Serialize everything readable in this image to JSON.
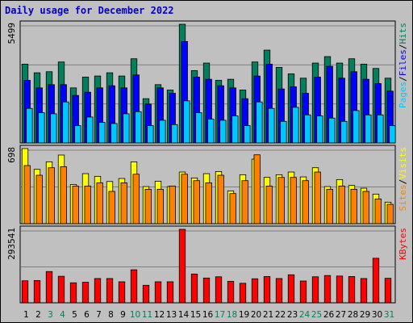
{
  "title": "Daily usage for December 2022",
  "colors": {
    "hits": "#00805c",
    "files": "#0000ff",
    "pages": "#00c8ff",
    "visits": "#ffff00",
    "sites": "#ff8000",
    "kbytes": "#ff0000",
    "title": "#0000c0",
    "weekend": "#00805c",
    "plot_bg": "#c0c0c0"
  },
  "panel_labels": {
    "top_max": "5499",
    "mid_max": "698",
    "bot_max": "293541",
    "top_legend": [
      "Pages",
      "/",
      "Files",
      "/",
      "Hits"
    ],
    "mid_legend": [
      "Sites",
      "/",
      "Visits"
    ],
    "bot_legend": [
      "KBytes"
    ]
  },
  "chart_data": {
    "type": "bar",
    "title": "Daily usage for December 2022",
    "categories": [
      "1",
      "2",
      "3",
      "4",
      "5",
      "6",
      "7",
      "8",
      "9",
      "10",
      "11",
      "12",
      "13",
      "14",
      "15",
      "16",
      "17",
      "18",
      "19",
      "20",
      "21",
      "22",
      "23",
      "24",
      "25",
      "26",
      "27",
      "28",
      "29",
      "30",
      "31"
    ],
    "weekend_days": [
      "3",
      "4",
      "10",
      "11",
      "17",
      "18",
      "24",
      "25",
      "31"
    ],
    "panels": [
      {
        "name": "requests",
        "ylim": [
          0,
          5499
        ],
        "series": [
          {
            "name": "Hits",
            "values": [
              3650,
              3250,
              3300,
              3750,
              2550,
              3050,
              3100,
              3250,
              3100,
              3900,
              2050,
              2700,
              2450,
              5499,
              3350,
              3700,
              2900,
              2950,
              2450,
              3750,
              4300,
              3500,
              3200,
              3000,
              3700,
              4000,
              3700,
              3900,
              3650,
              3450,
              3000
            ]
          },
          {
            "name": "Files",
            "values": [
              2900,
              2550,
              2700,
              2700,
              2200,
              2350,
              2550,
              2650,
              2550,
              3150,
              1800,
              2550,
              2300,
              4700,
              3050,
              2950,
              2650,
              2550,
              2050,
              3100,
              3650,
              2500,
              2600,
              2300,
              3050,
              3550,
              3000,
              3300,
              2950,
              2750,
              2400
            ]
          },
          {
            "name": "Pages",
            "values": [
              1600,
              1400,
              1350,
              1900,
              800,
              1200,
              950,
              900,
              1350,
              1450,
              800,
              1050,
              850,
              1950,
              1400,
              1100,
              1050,
              1250,
              800,
              1900,
              1600,
              1000,
              1650,
              1300,
              1250,
              1150,
              1000,
              1500,
              1300,
              1300,
              800
            ]
          }
        ]
      },
      {
        "name": "visitors",
        "ylim": [
          0,
          698
        ],
        "series": [
          {
            "name": "Visits",
            "values": [
              698,
              505,
              575,
              638,
              365,
              465,
              440,
              392,
              420,
              575,
              345,
              395,
              345,
              480,
              425,
              465,
              485,
              305,
              455,
              600,
              430,
              455,
              480,
              435,
              520,
              345,
              410,
              355,
              330,
              275,
              200
            ]
          },
          {
            "name": "Sites",
            "values": [
              540,
              450,
              520,
              530,
              350,
              350,
              380,
              300,
              380,
              460,
              320,
              320,
              350,
              460,
              400,
              380,
              450,
              280,
              400,
              640,
              350,
              430,
              430,
              400,
              480,
              320,
              350,
              320,
              300,
              230,
              180
            ]
          }
        ]
      },
      {
        "name": "traffic",
        "ylim": [
          0,
          293541
        ],
        "series": [
          {
            "name": "KBytes",
            "values": [
              88000,
              89000,
              125000,
              106000,
              80000,
              82000,
              97000,
              97000,
              84000,
              132000,
              70000,
              84000,
              84000,
              293541,
              115000,
              99000,
              104000,
              86000,
              78000,
              96000,
              105000,
              97000,
              112000,
              87000,
              104000,
              109000,
              107000,
              105000,
              97000,
              178000,
              98000
            ]
          }
        ]
      }
    ]
  }
}
